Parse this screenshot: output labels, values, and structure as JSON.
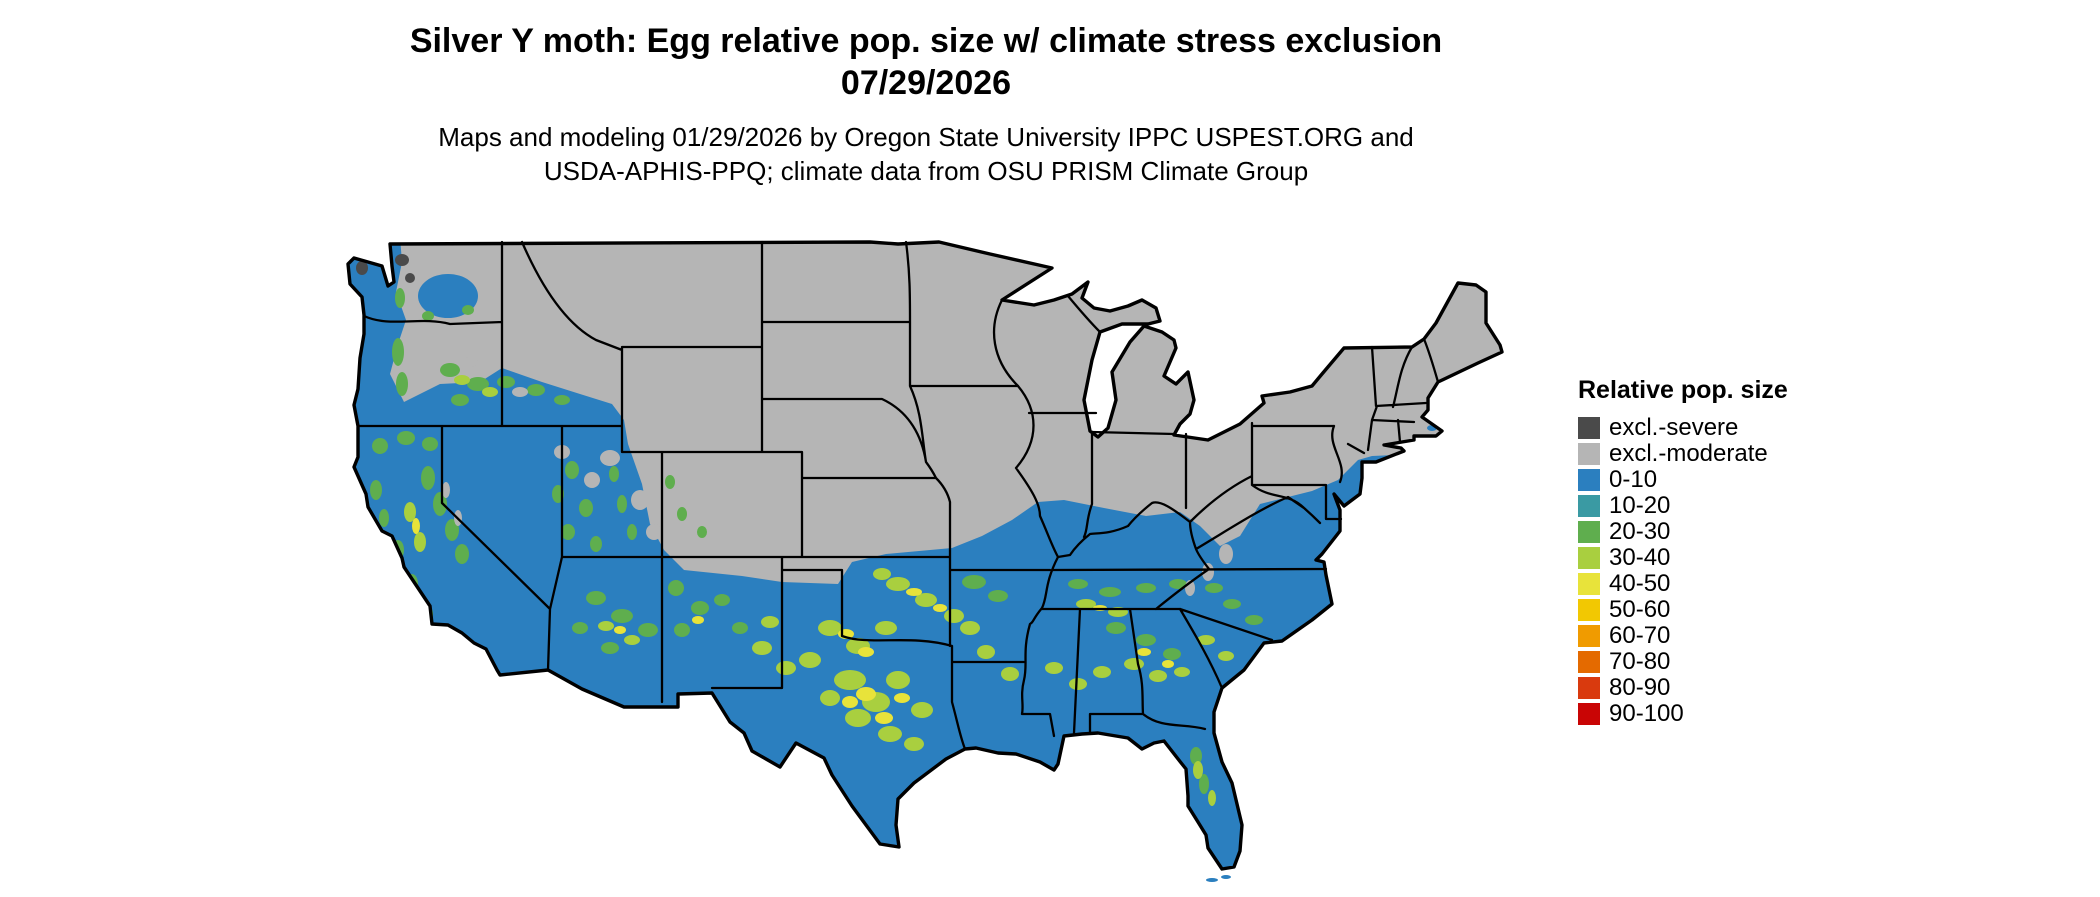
{
  "header": {
    "title": "Silver Y moth: Egg relative pop. size w/ climate stress exclusion",
    "date": "07/29/2026",
    "credit_line1": "Maps and modeling 01/29/2026 by Oregon State University IPPC USPEST.ORG and",
    "credit_line2": "USDA-APHIS-PPQ; climate data from OSU PRISM Climate Group"
  },
  "legend": {
    "title": "Relative pop. size",
    "entries": [
      {
        "label": "excl.-severe",
        "color": "#4a4a4a"
      },
      {
        "label": "excl.-moderate",
        "color": "#b5b5b5"
      },
      {
        "label": "0-10",
        "color": "#2b7fbf"
      },
      {
        "label": "10-20",
        "color": "#3a9aa3"
      },
      {
        "label": "20-30",
        "color": "#5fae4e"
      },
      {
        "label": "30-40",
        "color": "#a9cf3f"
      },
      {
        "label": "40-50",
        "color": "#e8e33a"
      },
      {
        "label": "50-60",
        "color": "#f2c802"
      },
      {
        "label": "60-70",
        "color": "#f09b00"
      },
      {
        "label": "70-80",
        "color": "#e46a00"
      },
      {
        "label": "80-90",
        "color": "#d93a0e"
      },
      {
        "label": "90-100",
        "color": "#c90505"
      }
    ]
  },
  "map": {
    "colors": {
      "excluded_moderate": "#b5b5b5",
      "excluded_severe": "#4a4a4a",
      "base_population": "#2b7fbf",
      "state_border": "#000000",
      "background": "#ffffff"
    }
  }
}
